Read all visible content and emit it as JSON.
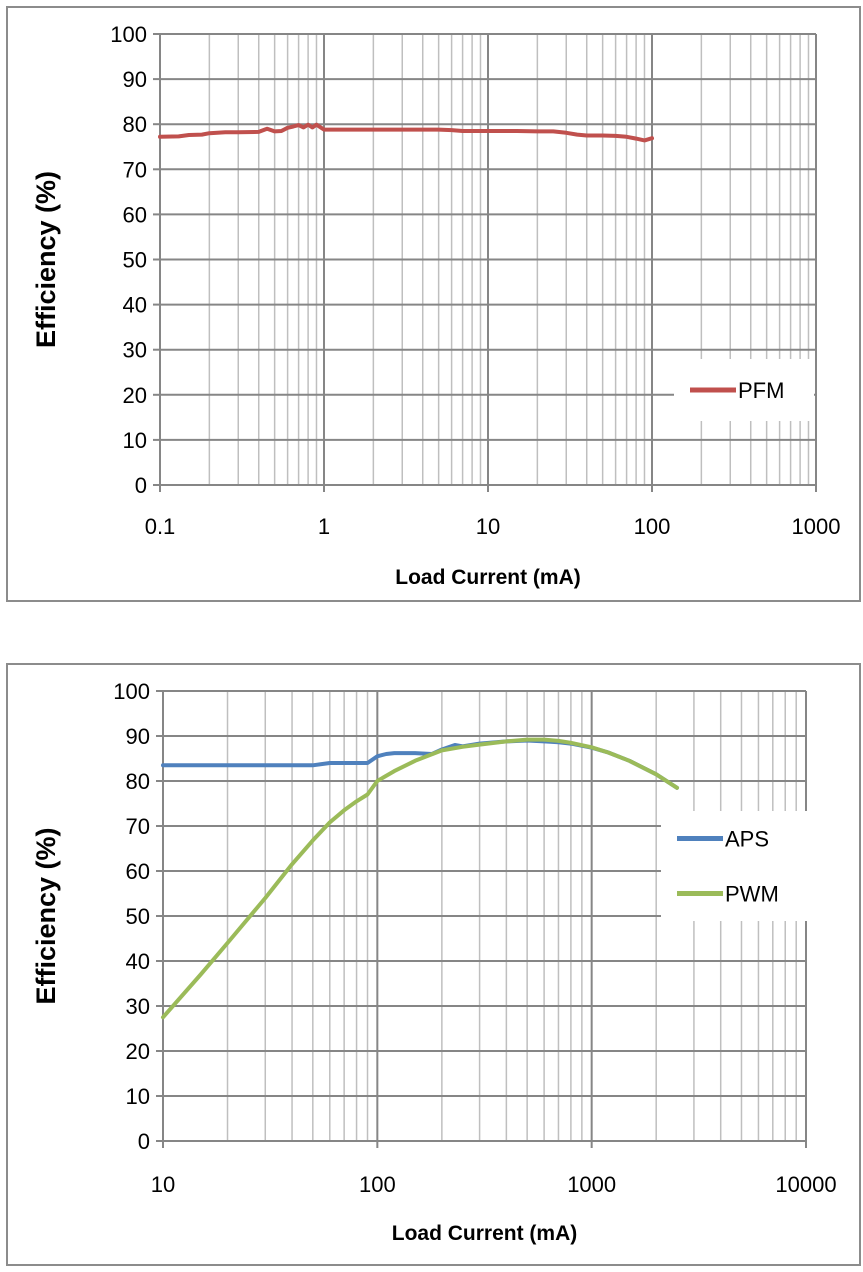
{
  "chart_data": [
    {
      "type": "line",
      "title": "",
      "xlabel": "Load Current (mA)",
      "ylabel": "Efficiency (%)",
      "x_scale": "log",
      "xlim": [
        0.1,
        1000
      ],
      "ylim": [
        0,
        100
      ],
      "x_tick_labels": [
        "0.1",
        "1",
        "10",
        "100",
        "1000"
      ],
      "y_tick_labels": [
        "0",
        "10",
        "20",
        "30",
        "40",
        "50",
        "60",
        "70",
        "80",
        "90",
        "100"
      ],
      "grid": true,
      "legend_position": "right",
      "series": [
        {
          "name": "PFM",
          "color": "#c0504d",
          "x": [
            0.1,
            0.13,
            0.15,
            0.18,
            0.2,
            0.25,
            0.3,
            0.4,
            0.45,
            0.5,
            0.55,
            0.6,
            0.65,
            0.7,
            0.75,
            0.8,
            0.85,
            0.9,
            1,
            1.5,
            2,
            3,
            4,
            5,
            6,
            7,
            10,
            15,
            20,
            25,
            30,
            35,
            40,
            50,
            60,
            70,
            80,
            90,
            100
          ],
          "y": [
            77.2,
            77.3,
            77.6,
            77.7,
            78.0,
            78.2,
            78.2,
            78.3,
            79.0,
            78.4,
            78.5,
            79.2,
            79.5,
            79.8,
            79.3,
            79.9,
            79.3,
            79.9,
            78.8,
            78.8,
            78.8,
            78.8,
            78.8,
            78.8,
            78.7,
            78.5,
            78.5,
            78.5,
            78.4,
            78.4,
            78.1,
            77.7,
            77.5,
            77.5,
            77.4,
            77.2,
            76.8,
            76.4,
            76.9
          ]
        }
      ]
    },
    {
      "type": "line",
      "title": "",
      "xlabel": "Load Current (mA)",
      "ylabel": "Efficiency (%)",
      "x_scale": "log",
      "xlim": [
        10,
        10000
      ],
      "ylim": [
        0,
        100
      ],
      "x_tick_labels": [
        "10",
        "100",
        "1000",
        "10000"
      ],
      "y_tick_labels": [
        "0",
        "10",
        "20",
        "30",
        "40",
        "50",
        "60",
        "70",
        "80",
        "90",
        "100"
      ],
      "grid": true,
      "legend_position": "right",
      "series": [
        {
          "name": "APS",
          "color": "#4f81bd",
          "x": [
            10,
            20,
            30,
            40,
            50,
            60,
            70,
            80,
            90,
            100,
            110,
            120,
            150,
            180,
            200,
            230,
            250,
            300,
            400,
            500,
            600,
            700,
            800,
            1000,
            1200,
            1500,
            2000,
            2500
          ],
          "y": [
            83.5,
            83.5,
            83.5,
            83.5,
            83.5,
            84.0,
            84.0,
            84.0,
            84.0,
            85.5,
            86.0,
            86.2,
            86.2,
            86.0,
            87.0,
            88.0,
            87.7,
            88.3,
            88.8,
            89.0,
            88.8,
            88.6,
            88.3,
            87.4,
            86.3,
            84.5,
            81.5,
            78.5
          ]
        },
        {
          "name": "PWM",
          "color": "#9bbb59",
          "x": [
            10,
            15,
            20,
            30,
            40,
            50,
            60,
            70,
            80,
            90,
            100,
            120,
            150,
            200,
            250,
            300,
            400,
            500,
            600,
            700,
            800,
            1000,
            1200,
            1500,
            2000,
            2500
          ],
          "y": [
            27.5,
            37.0,
            44.0,
            54.0,
            61.5,
            66.8,
            70.8,
            73.5,
            75.5,
            77.0,
            80.0,
            82.2,
            84.5,
            86.8,
            87.6,
            88.1,
            88.8,
            89.2,
            89.2,
            88.9,
            88.5,
            87.5,
            86.3,
            84.5,
            81.5,
            78.5
          ]
        }
      ]
    }
  ]
}
